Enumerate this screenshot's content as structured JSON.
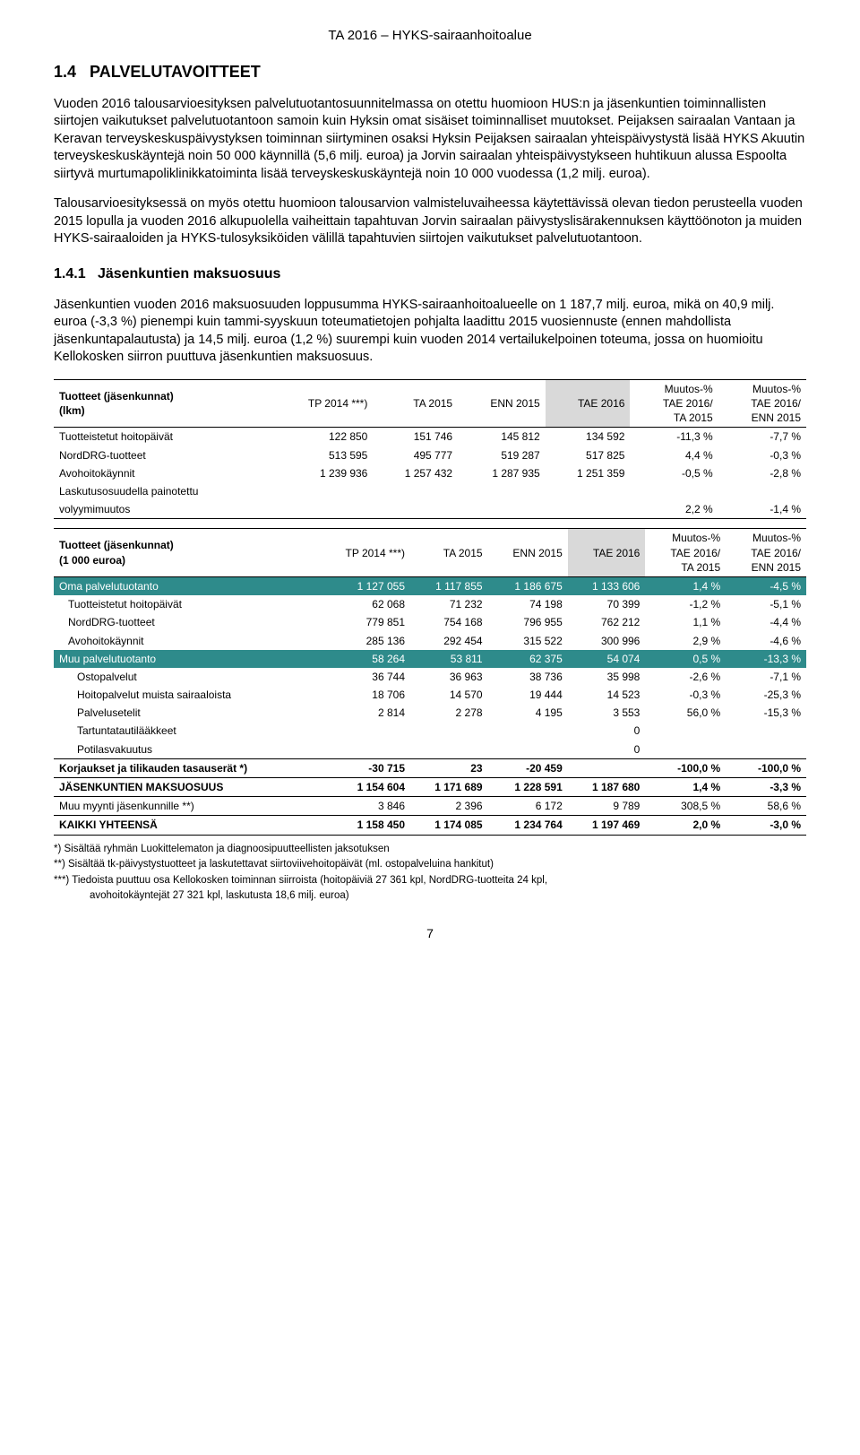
{
  "header": "TA 2016 – HYKS-sairaanhoitoalue",
  "section_num": "1.4",
  "section_title": "PALVELUTAVOITTEET",
  "para1": "Vuoden 2016 talousarvioesityksen palvelutuotantosuunnitelmassa on otettu huomioon HUS:n ja jäsenkuntien toiminnallisten siirtojen vaikutukset palvelutuotantoon samoin kuin Hyksin omat sisäiset toiminnalliset muutokset. Peijaksen sairaalan Vantaan ja Keravan terveyskeskuspäivystyksen toiminnan siirtyminen osaksi Hyksin Peijaksen sairaalan yhteispäivystystä lisää HYKS Akuutin terveyskeskuskäyntejä noin 50 000 käynnillä (5,6 milj. euroa) ja Jorvin sairaalan yhteispäivystykseen huhtikuun alussa Espoolta siirtyvä murtumapoliklinikkatoiminta lisää terveyskeskuskäyntejä noin 10 000 vuodessa (1,2 milj. euroa).",
  "para2": "Talousarvioesityksessä on myös otettu huomioon talousarvion valmisteluvaiheessa käytettävissä olevan tiedon perusteella vuoden 2015 lopulla ja vuoden 2016 alkupuolella vaiheittain tapahtuvan Jorvin sairaalan päivystyslisärakennuksen käyttöönoton ja muiden HYKS-sairaaloiden ja HYKS-tulosyksiköiden välillä tapahtuvien siirtojen vaikutukset palvelutuotantoon.",
  "sub_num": "1.4.1",
  "sub_title": "Jäsenkuntien maksuosuus",
  "para3": "Jäsenkuntien vuoden 2016 maksuosuuden loppusumma HYKS-sairaanhoitoalueelle on 1 187,7 milj. euroa, mikä on 40,9 milj. euroa (-3,3 %) pienempi kuin tammi-syyskuun toteumatietojen pohjalta laadittu 2015 vuosiennuste (ennen mahdollista jäsenkuntapalautusta) ja 14,5 milj. euroa (1,2 %) suurempi kuin vuoden 2014 vertailukelpoinen toteuma, jossa on huomioitu Kellokosken siirron puuttuva jäsenkuntien maksuosuus.",
  "columns": {
    "c1": "TP 2014 ***)",
    "c2": "TA 2015",
    "c3": "ENN 2015",
    "c4": "TAE 2016",
    "c5a": "Muutos-%",
    "c5b": "TAE 2016/",
    "c5c": "TA 2015",
    "c6a": "Muutos-%",
    "c6b": "TAE 2016/",
    "c6c": "ENN 2015"
  },
  "table1": {
    "title_a": "Tuotteet (jäsenkunnat)",
    "title_b": "(lkm)",
    "rows": [
      {
        "label": "Tuotteistetut hoitopäivät",
        "v": [
          "122 850",
          "151 746",
          "145 812",
          "134 592",
          "-11,3 %",
          "-7,7 %"
        ]
      },
      {
        "label": "NordDRG-tuotteet",
        "v": [
          "513 595",
          "495 777",
          "519 287",
          "517 825",
          "4,4 %",
          "-0,3 %"
        ]
      },
      {
        "label": "Avohoitokäynnit",
        "v": [
          "1 239 936",
          "1 257 432",
          "1 287 935",
          "1 251 359",
          "-0,5 %",
          "-2,8 %"
        ]
      }
    ],
    "vol_label_a": "Laskutusosuudella painotettu",
    "vol_label_b": "volyymimuutos",
    "vol_vals": [
      "",
      "",
      "",
      "",
      "2,2 %",
      "-1,4 %"
    ]
  },
  "table2": {
    "title_a": "Tuotteet (jäsenkunnat)",
    "title_b": "(1 000 euroa)",
    "rows": [
      {
        "label": "Oma palvelutuotanto",
        "v": [
          "1 127 055",
          "1 117 855",
          "1 186 675",
          "1 133 606",
          "1,4 %",
          "-4,5 %"
        ],
        "teal": true
      },
      {
        "label": "Tuotteistetut hoitopäivät",
        "v": [
          "62 068",
          "71 232",
          "74 198",
          "70 399",
          "-1,2 %",
          "-5,1 %"
        ],
        "ind": 1
      },
      {
        "label": "NordDRG-tuotteet",
        "v": [
          "779 851",
          "754 168",
          "796 955",
          "762 212",
          "1,1 %",
          "-4,4 %"
        ],
        "ind": 1
      },
      {
        "label": "Avohoitokäynnit",
        "v": [
          "285 136",
          "292 454",
          "315 522",
          "300 996",
          "2,9 %",
          "-4,6 %"
        ],
        "ind": 1
      },
      {
        "label": "Muu palvelutuotanto",
        "v": [
          "58 264",
          "53 811",
          "62 375",
          "54 074",
          "0,5 %",
          "-13,3 %"
        ],
        "teal": true
      },
      {
        "label": "Ostopalvelut",
        "v": [
          "36 744",
          "36 963",
          "38 736",
          "35 998",
          "-2,6 %",
          "-7,1 %"
        ],
        "ind": 2
      },
      {
        "label": "Hoitopalvelut muista sairaaloista",
        "v": [
          "18 706",
          "14 570",
          "19 444",
          "14 523",
          "-0,3 %",
          "-25,3 %"
        ],
        "ind": 2
      },
      {
        "label": "Palvelusetelit",
        "v": [
          "2 814",
          "2 278",
          "4 195",
          "3 553",
          "56,0 %",
          "-15,3 %"
        ],
        "ind": 2
      },
      {
        "label": "Tartuntatautilääkkeet",
        "v": [
          "",
          "",
          "",
          "0",
          "",
          ""
        ],
        "ind": 2
      },
      {
        "label": "Potilasvakuutus",
        "v": [
          "",
          "",
          "",
          "0",
          "",
          ""
        ],
        "ind": 2
      },
      {
        "label": "Korjaukset ja tilikauden tasauserät *)",
        "v": [
          "-30 715",
          "23",
          "-20 459",
          "",
          "-100,0 %",
          "-100,0 %"
        ],
        "bold": true,
        "btop": true
      },
      {
        "label": "JÄSENKUNTIEN MAKSUOSUUS",
        "v": [
          "1 154 604",
          "1 171 689",
          "1 228 591",
          "1 187 680",
          "1,4 %",
          "-3,3 %"
        ],
        "bold": true,
        "btop": true,
        "bbot": true
      },
      {
        "label": "Muu myynti jäsenkunnille **)",
        "v": [
          "3 846",
          "2 396",
          "6 172",
          "9 789",
          "308,5 %",
          "58,6 %"
        ]
      },
      {
        "label": "KAIKKI YHTEENSÄ",
        "v": [
          "1 158 450",
          "1 174 085",
          "1 234 764",
          "1 197 469",
          "2,0 %",
          "-3,0 %"
        ],
        "bold": true,
        "btop": true,
        "bbot": true
      }
    ]
  },
  "footnotes": [
    "*) Sisältää ryhmän Luokittelematon ja diagnoosipuutteellisten jaksotuksen",
    "**) Sisältää tk-päivystystuotteet ja laskutettavat siirtoviivehoitopäivät (ml. ostopalveluina hankitut)",
    "***) Tiedoista puuttuu osa Kellokosken toiminnan siirroista (hoitopäiviä 27 361 kpl, NordDRG-tuotteita 24 kpl,",
    "avohoitokäyntejät 27 321 kpl, laskutusta 18,6 milj. euroa)"
  ],
  "page_number": "7",
  "colors": {
    "teal": "#2e8b8b",
    "highlight": "#d9d9d9"
  }
}
